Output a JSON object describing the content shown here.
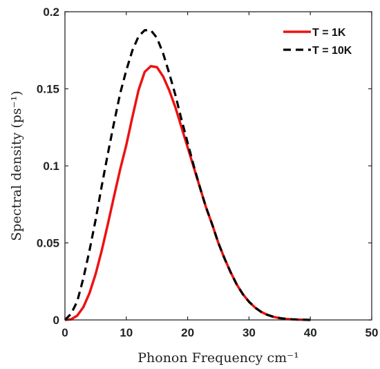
{
  "chart_data": {
    "type": "line",
    "xlabel": "Phonon Frequency cm⁻¹",
    "ylabel": "Spectral density (ps⁻¹)",
    "xlim": [
      0,
      50
    ],
    "ylim": [
      0,
      0.2
    ],
    "xticks": [
      "0",
      "10",
      "20",
      "30",
      "40",
      "50"
    ],
    "yticks": [
      "0",
      "0.05",
      "0.1",
      "0.15",
      "0.2"
    ],
    "grid": false,
    "legend_position": "top-right",
    "series": [
      {
        "name": "T = 1K",
        "color": "#ee1111",
        "style": "solid",
        "x": [
          0,
          1,
          2,
          3,
          4,
          5,
          6,
          7,
          8,
          9,
          10,
          11,
          12,
          13,
          14,
          15,
          16,
          17,
          18,
          19,
          20,
          21,
          22,
          23,
          24,
          25,
          26,
          27,
          28,
          29,
          30,
          31,
          32,
          33,
          34,
          35,
          36,
          37,
          38,
          39,
          40
        ],
        "values": [
          0,
          0.0004,
          0.0028,
          0.0083,
          0.0174,
          0.0298,
          0.0451,
          0.0623,
          0.0802,
          0.0977,
          0.1135,
          0.1318,
          0.1492,
          0.161,
          0.1647,
          0.164,
          0.158,
          0.149,
          0.138,
          0.125,
          0.112,
          0.099,
          0.086,
          0.073,
          0.062,
          0.05,
          0.04,
          0.031,
          0.023,
          0.0167,
          0.0118,
          0.008,
          0.0052,
          0.0033,
          0.002,
          0.0012,
          0.0007,
          0.0004,
          0.0002,
          0.0001,
          0
        ]
      },
      {
        "name": "T = 10K",
        "color": "#000000",
        "style": "dashed",
        "x": [
          0,
          1,
          2,
          3,
          4,
          5,
          6,
          7,
          8,
          9,
          10,
          11,
          12,
          13,
          14,
          15,
          16,
          17,
          18,
          19,
          20,
          21,
          22,
          23,
          24,
          25,
          26,
          27,
          28,
          29,
          30,
          31,
          32,
          33,
          34,
          35,
          36,
          37,
          38,
          39,
          40
        ],
        "values": [
          0,
          0.004,
          0.012,
          0.027,
          0.045,
          0.065,
          0.087,
          0.108,
          0.128,
          0.147,
          0.162,
          0.175,
          0.184,
          0.188,
          0.188,
          0.183,
          0.173,
          0.16,
          0.146,
          0.13,
          0.115,
          0.1,
          0.086,
          0.073,
          0.062,
          0.05,
          0.04,
          0.031,
          0.023,
          0.0167,
          0.0118,
          0.008,
          0.0052,
          0.0033,
          0.002,
          0.0012,
          0.0007,
          0.0004,
          0.0002,
          0.0001,
          0
        ]
      }
    ]
  }
}
